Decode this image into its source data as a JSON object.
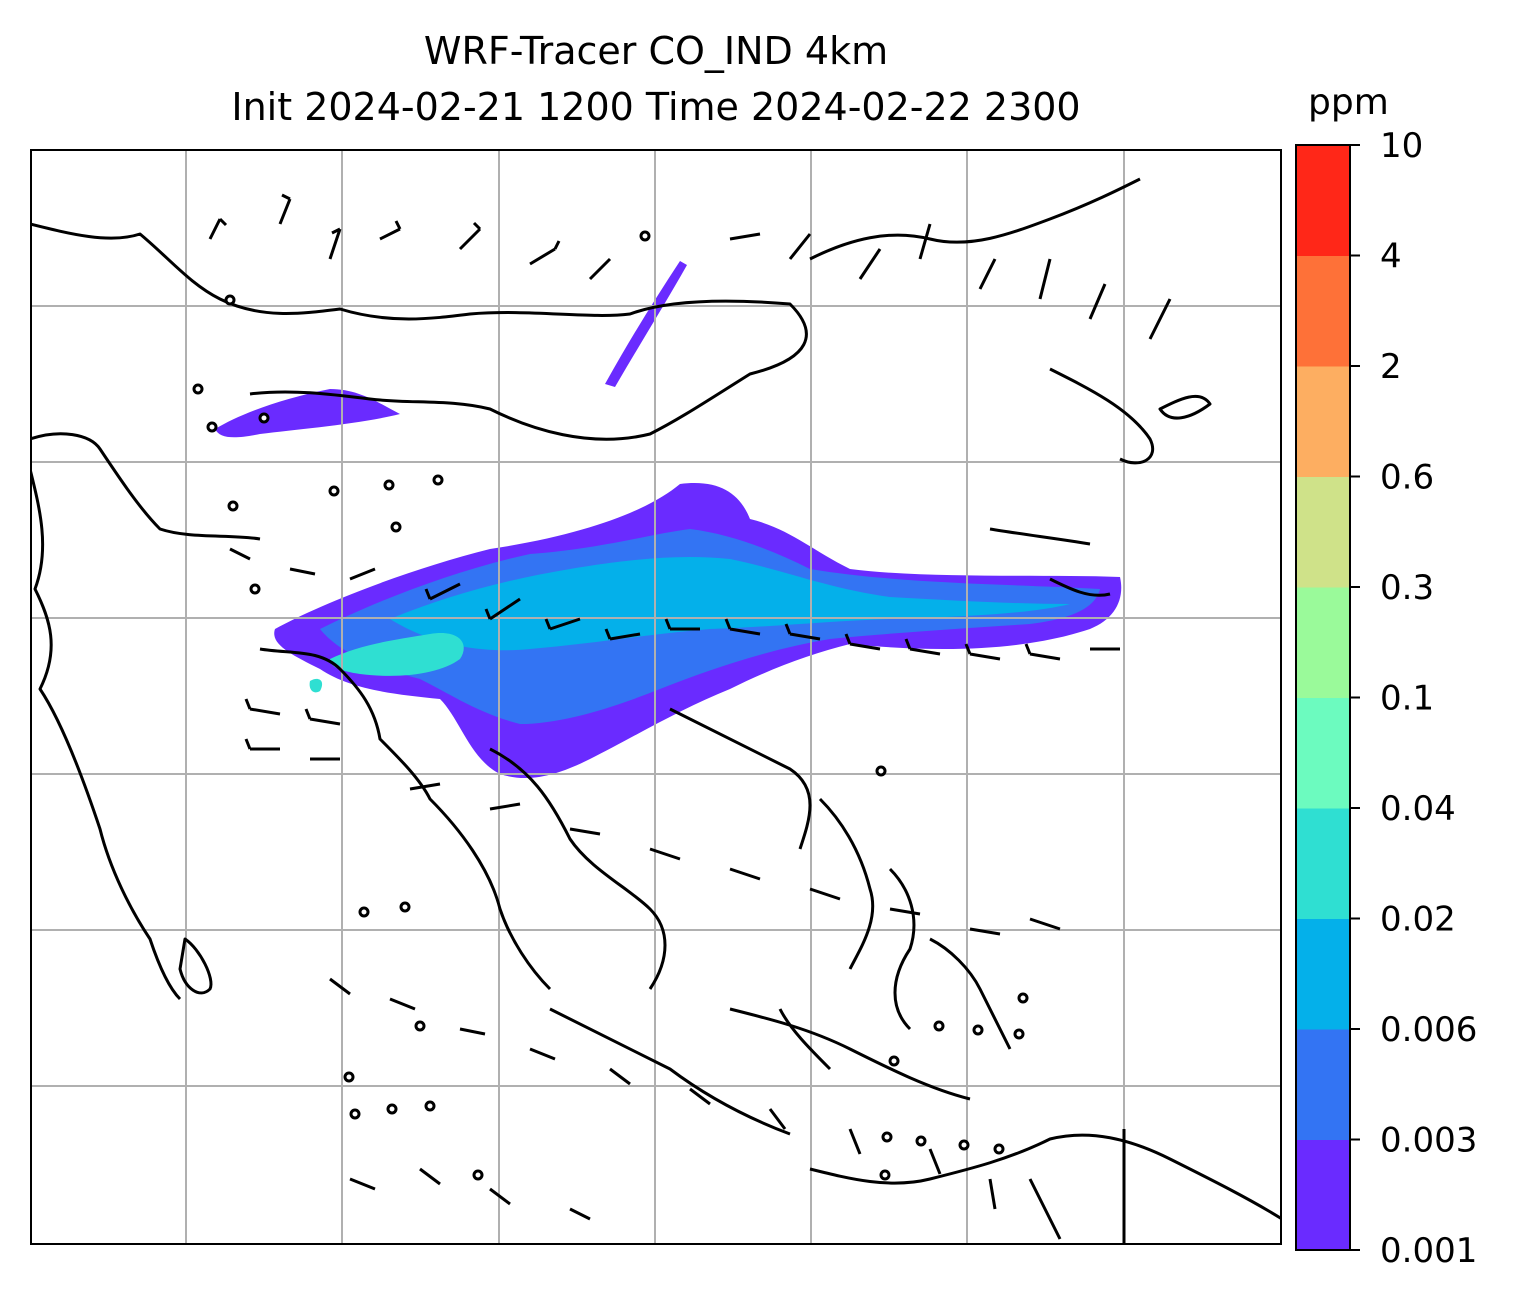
{
  "title": {
    "line1": "WRF-Tracer CO_IND 4km",
    "line2": "Init 2024-02-21 1200 Time 2024-02-22 2300"
  },
  "colorbar": {
    "unit": "ppm",
    "levels": [
      "0.001",
      "0.003",
      "0.006",
      "0.02",
      "0.04",
      "0.1",
      "0.3",
      "0.6",
      "2",
      "4",
      "10"
    ],
    "colors": [
      "#6a2bff",
      "#3374f3",
      "#04b0ea",
      "#2fdfd2",
      "#6cfbbf",
      "#9afa9a",
      "#cfe289",
      "#fdae61",
      "#fe7138",
      "#ff2718"
    ]
  },
  "map": {
    "frame_color": "#000000",
    "grid_color": "#b0b0b0",
    "coastline_color": "#000000",
    "barb_color": "#000000",
    "content": "CO tracer concentration shading with wind barbs over South and Southeast Asia"
  }
}
